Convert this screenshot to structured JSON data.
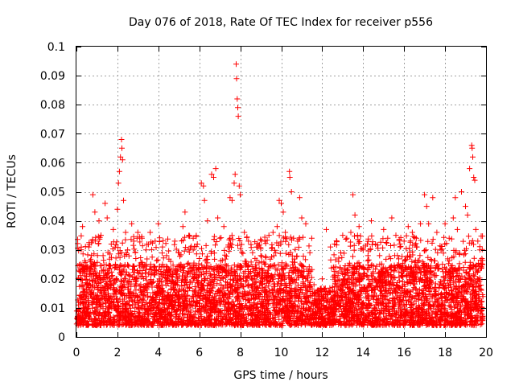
{
  "chart_data": {
    "type": "scatter",
    "title": "Day 076 of 2018, Rate Of TEC Index for receiver p556",
    "xlabel": "GPS time / hours",
    "ylabel": "ROTI / TECUs",
    "xlim": [
      0,
      20
    ],
    "ylim": [
      0,
      0.1
    ],
    "xticks": [
      0,
      2,
      4,
      6,
      8,
      10,
      12,
      14,
      16,
      18,
      20
    ],
    "yticks": [
      0,
      0.01,
      0.02,
      0.03,
      0.04,
      0.05,
      0.06,
      0.07,
      0.08,
      0.09,
      0.1
    ],
    "xtick_labels": [
      "0",
      "2",
      "4",
      "6",
      "8",
      "10",
      "12",
      "14",
      "16",
      "18",
      "20"
    ],
    "ytick_labels": [
      "0",
      "0.01",
      "0.02",
      "0.03",
      "0.04",
      "0.05",
      "0.06",
      "0.07",
      "0.08",
      "0.09",
      "0.1"
    ],
    "grid": true,
    "marker": "+",
    "series": [
      {
        "name": "ROTI",
        "color": "#ff0000",
        "points": [
          [
            0.1,
            0.012
          ],
          [
            0.2,
            0.025
          ],
          [
            0.3,
            0.038
          ],
          [
            0.4,
            0.009
          ],
          [
            0.5,
            0.018
          ],
          [
            0.6,
            0.031
          ],
          [
            0.7,
            0.015
          ],
          [
            0.8,
            0.049
          ],
          [
            0.9,
            0.043
          ],
          [
            1.0,
            0.022
          ],
          [
            1.1,
            0.04
          ],
          [
            1.2,
            0.035
          ],
          [
            1.3,
            0.028
          ],
          [
            1.4,
            0.046
          ],
          [
            1.5,
            0.041
          ],
          [
            1.6,
            0.019
          ],
          [
            1.7,
            0.032
          ],
          [
            1.8,
            0.037
          ],
          [
            1.9,
            0.024
          ],
          [
            2.0,
            0.044
          ],
          [
            2.05,
            0.053
          ],
          [
            2.1,
            0.057
          ],
          [
            2.15,
            0.062
          ],
          [
            2.2,
            0.068
          ],
          [
            2.22,
            0.065
          ],
          [
            2.25,
            0.061
          ],
          [
            2.3,
            0.047
          ],
          [
            2.4,
            0.036
          ],
          [
            2.5,
            0.03
          ],
          [
            2.6,
            0.021
          ],
          [
            2.7,
            0.039
          ],
          [
            2.8,
            0.033
          ],
          [
            2.9,
            0.027
          ],
          [
            3.0,
            0.036
          ],
          [
            3.2,
            0.034
          ],
          [
            3.4,
            0.03
          ],
          [
            3.6,
            0.036
          ],
          [
            3.8,
            0.024
          ],
          [
            4.0,
            0.039
          ],
          [
            4.2,
            0.031
          ],
          [
            4.4,
            0.028
          ],
          [
            4.6,
            0.026
          ],
          [
            4.8,
            0.033
          ],
          [
            5.0,
            0.029
          ],
          [
            5.2,
            0.038
          ],
          [
            5.3,
            0.043
          ],
          [
            5.5,
            0.035
          ],
          [
            5.7,
            0.03
          ],
          [
            5.9,
            0.032
          ],
          [
            6.0,
            0.027
          ],
          [
            6.1,
            0.053
          ],
          [
            6.2,
            0.052
          ],
          [
            6.25,
            0.047
          ],
          [
            6.4,
            0.04
          ],
          [
            6.6,
            0.056
          ],
          [
            6.7,
            0.055
          ],
          [
            6.8,
            0.058
          ],
          [
            6.9,
            0.041
          ],
          [
            7.0,
            0.034
          ],
          [
            7.2,
            0.038
          ],
          [
            7.4,
            0.031
          ],
          [
            7.5,
            0.048
          ],
          [
            7.6,
            0.047
          ],
          [
            7.7,
            0.053
          ],
          [
            7.75,
            0.056
          ],
          [
            7.8,
            0.094
          ],
          [
            7.82,
            0.089
          ],
          [
            7.85,
            0.082
          ],
          [
            7.88,
            0.079
          ],
          [
            7.9,
            0.076
          ],
          [
            7.95,
            0.052
          ],
          [
            8.0,
            0.049
          ],
          [
            8.2,
            0.036
          ],
          [
            8.4,
            0.033
          ],
          [
            8.6,
            0.029
          ],
          [
            8.8,
            0.031
          ],
          [
            9.0,
            0.028
          ],
          [
            9.2,
            0.033
          ],
          [
            9.4,
            0.035
          ],
          [
            9.6,
            0.036
          ],
          [
            9.8,
            0.038
          ],
          [
            9.9,
            0.047
          ],
          [
            10.0,
            0.046
          ],
          [
            10.1,
            0.043
          ],
          [
            10.2,
            0.036
          ],
          [
            10.4,
            0.057
          ],
          [
            10.42,
            0.055
          ],
          [
            10.5,
            0.05
          ],
          [
            10.6,
            0.034
          ],
          [
            10.8,
            0.033
          ],
          [
            10.9,
            0.048
          ],
          [
            11.0,
            0.041
          ],
          [
            11.2,
            0.039
          ],
          [
            11.4,
            0.029
          ],
          [
            11.6,
            0.018
          ],
          [
            11.8,
            0.016
          ],
          [
            12.0,
            0.02
          ],
          [
            12.2,
            0.037
          ],
          [
            12.4,
            0.031
          ],
          [
            12.6,
            0.032
          ],
          [
            12.8,
            0.026
          ],
          [
            13.0,
            0.035
          ],
          [
            13.2,
            0.034
          ],
          [
            13.4,
            0.036
          ],
          [
            13.5,
            0.049
          ],
          [
            13.6,
            0.042
          ],
          [
            13.8,
            0.038
          ],
          [
            14.0,
            0.03
          ],
          [
            14.2,
            0.032
          ],
          [
            14.4,
            0.04
          ],
          [
            14.6,
            0.032
          ],
          [
            14.8,
            0.028
          ],
          [
            15.0,
            0.037
          ],
          [
            15.2,
            0.034
          ],
          [
            15.4,
            0.041
          ],
          [
            15.6,
            0.035
          ],
          [
            15.8,
            0.031
          ],
          [
            16.0,
            0.033
          ],
          [
            16.2,
            0.038
          ],
          [
            16.4,
            0.036
          ],
          [
            16.6,
            0.031
          ],
          [
            16.8,
            0.039
          ],
          [
            17.0,
            0.049
          ],
          [
            17.1,
            0.045
          ],
          [
            17.2,
            0.039
          ],
          [
            17.4,
            0.048
          ],
          [
            17.6,
            0.036
          ],
          [
            17.8,
            0.03
          ],
          [
            18.0,
            0.039
          ],
          [
            18.2,
            0.034
          ],
          [
            18.4,
            0.041
          ],
          [
            18.5,
            0.048
          ],
          [
            18.6,
            0.037
          ],
          [
            18.8,
            0.05
          ],
          [
            19.0,
            0.045
          ],
          [
            19.1,
            0.042
          ],
          [
            19.2,
            0.058
          ],
          [
            19.3,
            0.066
          ],
          [
            19.32,
            0.065
          ],
          [
            19.35,
            0.062
          ],
          [
            19.4,
            0.055
          ],
          [
            19.45,
            0.054
          ],
          [
            19.5,
            0.037
          ],
          [
            19.6,
            0.033
          ],
          [
            19.7,
            0.03
          ],
          [
            19.8,
            0.027
          ]
        ],
        "noise_band": {
          "note": "dense background cloud of ROTI values across the full time range",
          "x_range": [
            0,
            19.85
          ],
          "base_y_range": [
            0.004,
            0.025
          ],
          "low_activity_interval": [
            11.5,
            12.4
          ],
          "low_activity_max_y": 0.017
        }
      }
    ]
  }
}
